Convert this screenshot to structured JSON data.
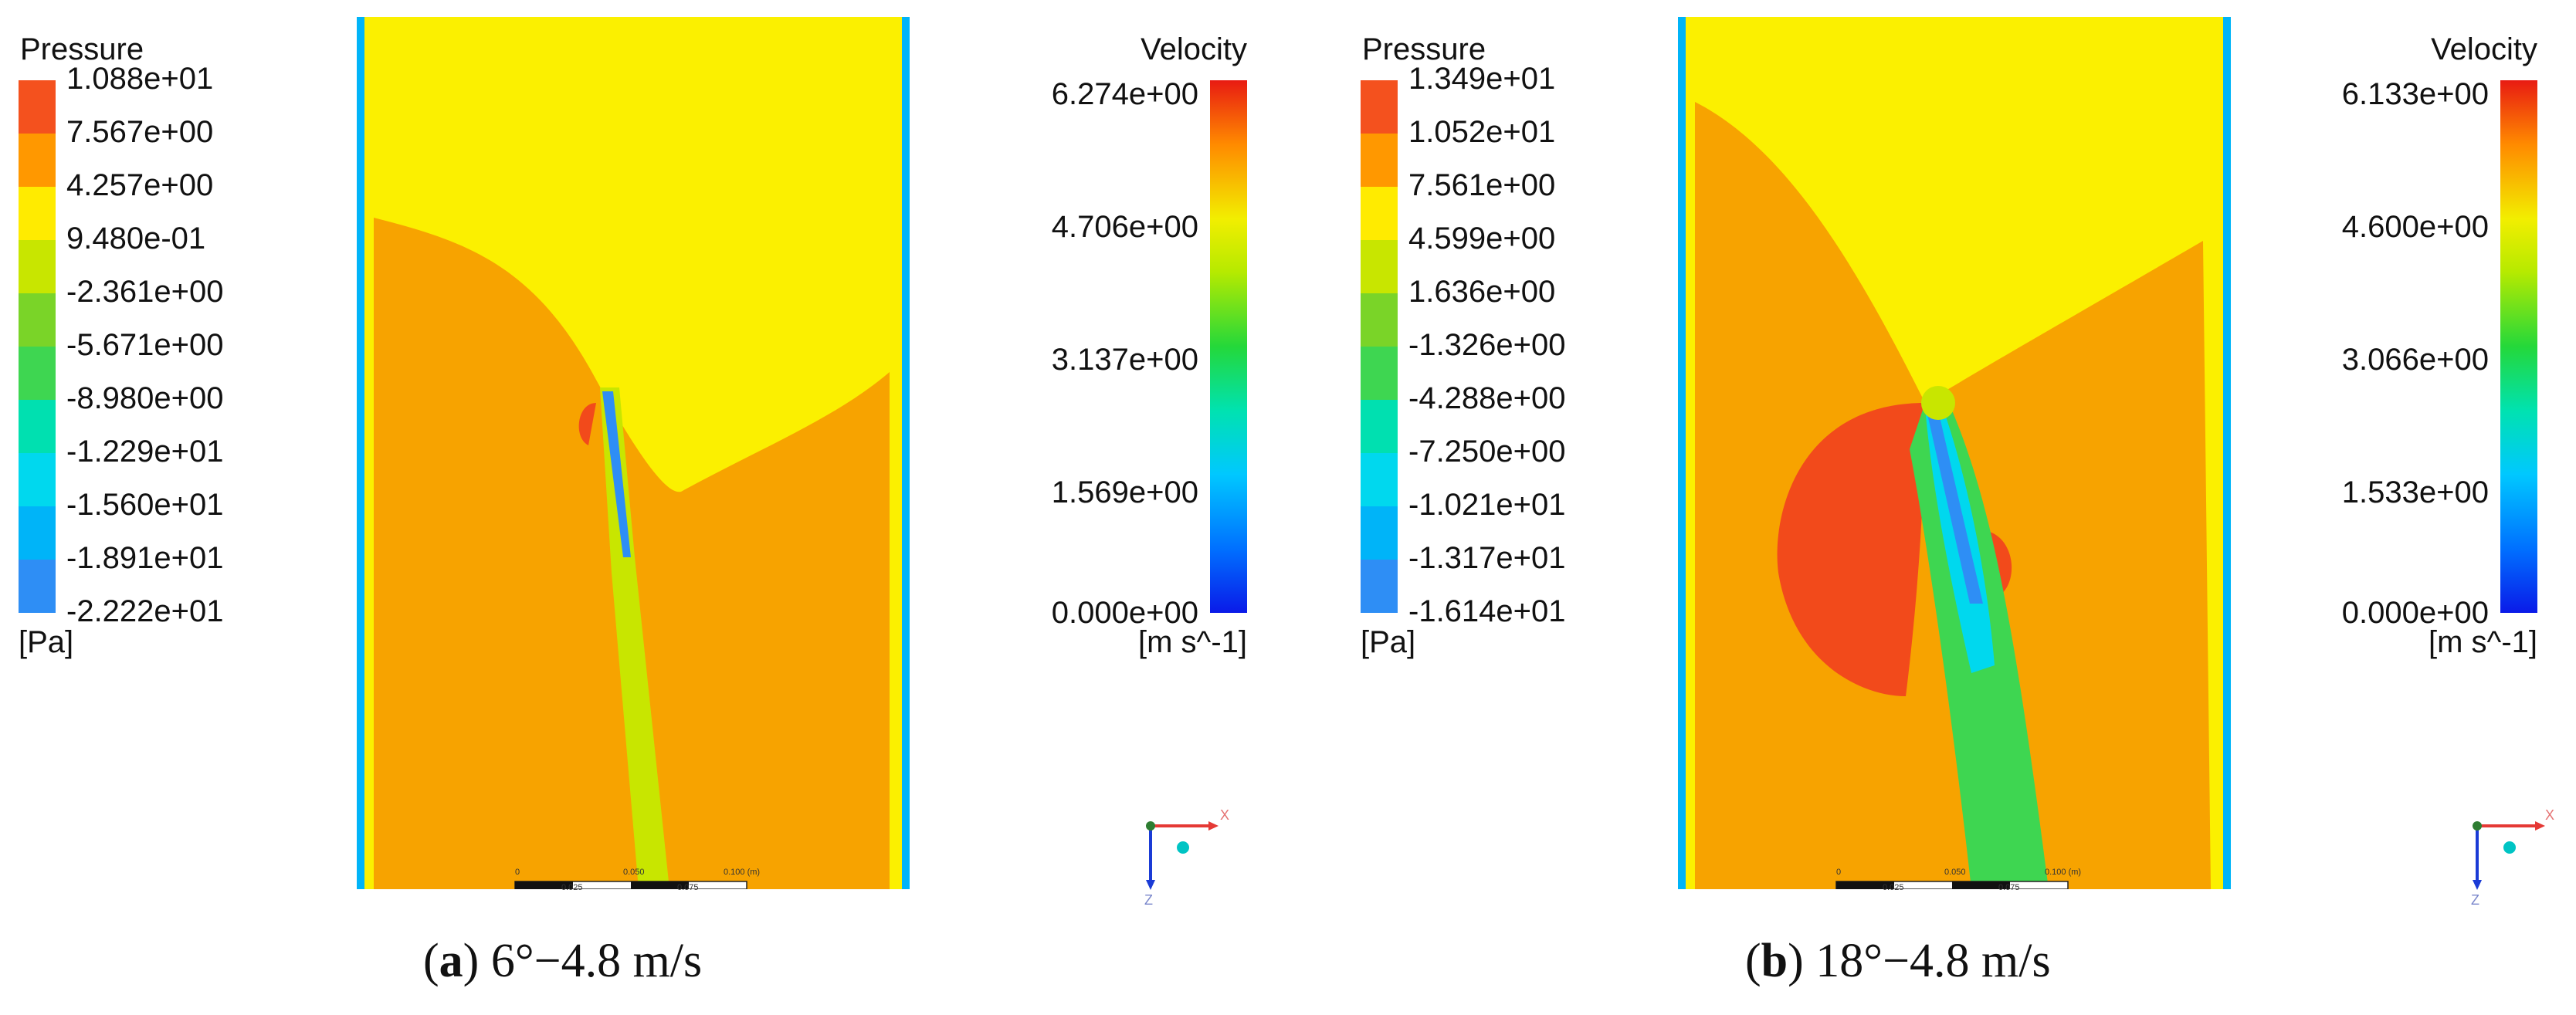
{
  "panels": [
    {
      "id": "a",
      "pressure_legend": {
        "title": "Pressure",
        "unit": "[Pa]",
        "levels": [
          "1.088e+01",
          "7.567e+00",
          "4.257e+00",
          "9.480e-01",
          "-2.361e+00",
          "-5.671e+00",
          "-8.980e+00",
          "-1.229e+01",
          "-1.560e+01",
          "-1.891e+01",
          "-2.222e+01"
        ]
      },
      "velocity_legend": {
        "title": "Velocity",
        "unit": "[m s^-1]",
        "ticks": [
          "6.274e+00",
          "4.706e+00",
          "3.137e+00",
          "1.569e+00",
          "0.000e+00"
        ]
      },
      "scale_bar": {
        "top_labels": [
          "0",
          "0.050",
          "0.100 (m)"
        ],
        "bottom_labels": [
          "0.025",
          "0.075"
        ]
      },
      "caption": {
        "letter": "a",
        "text": "6°−4.8 m/s"
      }
    },
    {
      "id": "b",
      "pressure_legend": {
        "title": "Pressure",
        "unit": "[Pa]",
        "levels": [
          "1.349e+01",
          "1.052e+01",
          "7.561e+00",
          "4.599e+00",
          "1.636e+00",
          "-1.326e+00",
          "-4.288e+00",
          "-7.250e+00",
          "-1.021e+01",
          "-1.317e+01",
          "-1.614e+01"
        ]
      },
      "velocity_legend": {
        "title": "Velocity",
        "unit": "[m s^-1]",
        "ticks": [
          "6.133e+00",
          "4.600e+00",
          "3.066e+00",
          "1.533e+00",
          "0.000e+00"
        ]
      },
      "scale_bar": {
        "top_labels": [
          "0",
          "0.050",
          "0.100 (m)"
        ],
        "bottom_labels": [
          "0.025",
          "0.075"
        ]
      },
      "caption": {
        "letter": "b",
        "text": "18°−4.8 m/s"
      }
    }
  ],
  "axis_triad": {
    "x": "X",
    "z": "Z"
  },
  "colors": {
    "pressure_swatches": [
      "#f4511e",
      "#ff9800",
      "#ffeb00",
      "#c8e600",
      "#7ad428",
      "#3ed651",
      "#00e0b0",
      "#00d8ee",
      "#00b4f8",
      "#2e8ef5",
      "#0d4df0"
    ],
    "field_orange": "#f7a300",
    "field_yellow": "#fbf000",
    "field_red": "#f24a1b"
  }
}
